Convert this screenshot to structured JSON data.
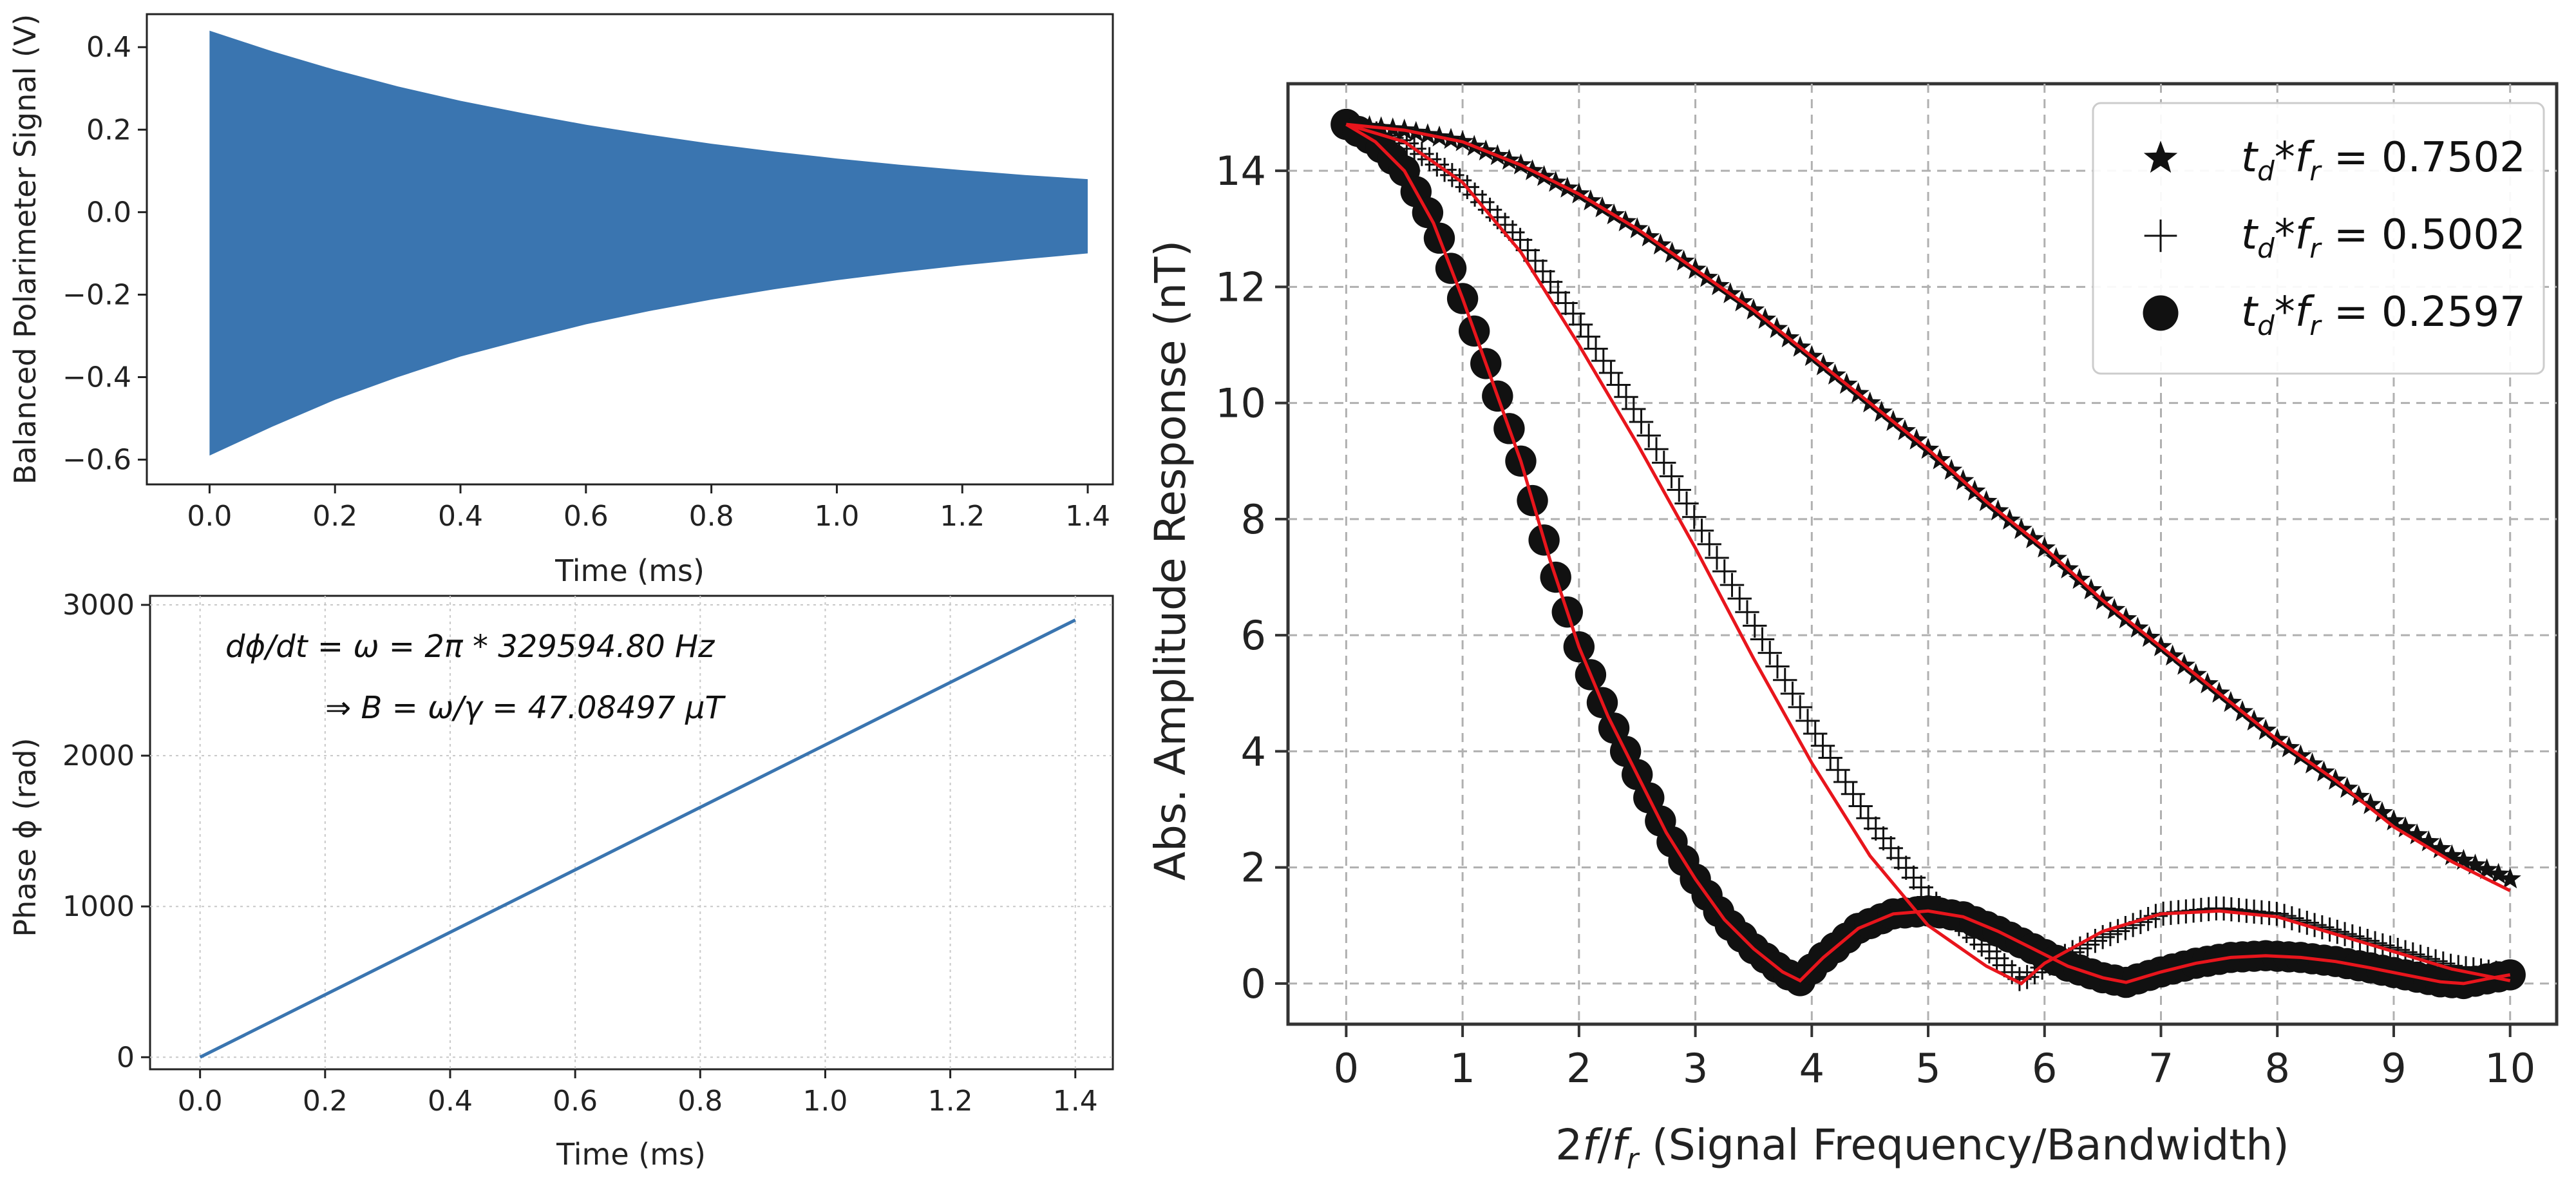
{
  "colors": {
    "signal": "#3a75b0",
    "phase": "#3a75b0",
    "fit": "#e8151c",
    "marker": "#111111"
  },
  "chart_data": [
    {
      "type": "area",
      "name_hint": "decaying-signal",
      "xlabel": "Time (ms)",
      "ylabel": "Balanced Polarimeter Signal (V)",
      "xlim": [
        -0.1,
        1.44
      ],
      "ylim": [
        -0.66,
        0.48
      ],
      "xticks": [
        0.0,
        0.2,
        0.4,
        0.6,
        0.8,
        1.0,
        1.2,
        1.4
      ],
      "xtick_labels": [
        "0.0",
        "0.2",
        "0.4",
        "0.6",
        "0.8",
        "1.0",
        "1.2",
        "1.4"
      ],
      "yticks": [
        -0.6,
        -0.4,
        -0.2,
        0.0,
        0.2,
        0.4
      ],
      "ytick_labels": [
        "−0.6",
        "−0.4",
        "−0.2",
        "0.0",
        "0.2",
        "0.4"
      ],
      "grid": false,
      "envelope": {
        "x": [
          0.0,
          0.1,
          0.2,
          0.3,
          0.4,
          0.5,
          0.6,
          0.7,
          0.8,
          0.9,
          1.0,
          1.1,
          1.2,
          1.3,
          1.4
        ],
        "upper": [
          0.44,
          0.39,
          0.345,
          0.305,
          0.27,
          0.24,
          0.212,
          0.188,
          0.166,
          0.147,
          0.13,
          0.115,
          0.102,
          0.09,
          0.08
        ],
        "lower": [
          -0.59,
          -0.52,
          -0.455,
          -0.4,
          -0.35,
          -0.31,
          -0.272,
          -0.24,
          -0.212,
          -0.187,
          -0.165,
          -0.146,
          -0.129,
          -0.114,
          -0.1
        ]
      }
    },
    {
      "type": "line",
      "name_hint": "phase",
      "xlabel": "Time (ms)",
      "ylabel": "Phase ϕ (rad)",
      "xlim": [
        -0.08,
        1.46
      ],
      "ylim": [
        -80,
        3060
      ],
      "xticks": [
        0.0,
        0.2,
        0.4,
        0.6,
        0.8,
        1.0,
        1.2,
        1.4
      ],
      "xtick_labels": [
        "0.0",
        "0.2",
        "0.4",
        "0.6",
        "0.8",
        "1.0",
        "1.2",
        "1.4"
      ],
      "yticks": [
        0,
        1000,
        2000,
        3000
      ],
      "ytick_labels": [
        "0",
        "1000",
        "2000",
        "3000"
      ],
      "grid": true,
      "x": [
        0.0,
        1.4
      ],
      "y": [
        0,
        2900
      ],
      "annotations": [
        "dϕ/dt = ω = 2π * 329594.80 Hz",
        "⇒ B = ω/γ = 47.08497 μT"
      ]
    },
    {
      "type": "scatter",
      "name_hint": "amplitude-response",
      "xlabel": "2f/f_r (Signal Frequency/Bandwidth)",
      "xlabel_main": "2",
      "xlabel_f": "f",
      "xlabel_slash": "/",
      "xlabel_fr": "f",
      "xlabel_fr_sub": "r",
      "xlabel_rest": " (Signal Frequency/Bandwidth)",
      "ylabel": "Abs. Amplitude Response (nT)",
      "xlim": [
        -0.5,
        10.4
      ],
      "ylim": [
        -0.7,
        15.5
      ],
      "xticks": [
        0,
        1,
        2,
        3,
        4,
        5,
        6,
        7,
        8,
        9,
        10
      ],
      "xtick_labels": [
        "0",
        "1",
        "2",
        "3",
        "4",
        "5",
        "6",
        "7",
        "8",
        "9",
        "10"
      ],
      "yticks": [
        0,
        2,
        4,
        6,
        8,
        10,
        12,
        14
      ],
      "ytick_labels": [
        "0",
        "2",
        "4",
        "6",
        "8",
        "10",
        "12",
        "14"
      ],
      "grid": true,
      "legend_position": "top-right",
      "series": [
        {
          "name": "t_d*f_r = 0.7502",
          "label_t": "t",
          "label_d": "d",
          "label_mid": "*",
          "label_f": "f",
          "label_r": "r",
          "label_val": " = 0.7502",
          "marker": "star",
          "x": [
            0,
            0.5,
            1,
            1.5,
            2,
            2.5,
            3,
            3.5,
            4,
            4.5,
            5,
            5.5,
            6,
            6.5,
            7,
            7.5,
            8,
            8.5,
            9,
            9.5,
            10
          ],
          "y": [
            14.8,
            14.7,
            14.5,
            14.1,
            13.6,
            13.0,
            12.3,
            11.6,
            10.8,
            10.0,
            9.2,
            8.3,
            7.5,
            6.6,
            5.8,
            5.0,
            4.2,
            3.5,
            2.8,
            2.2,
            1.8
          ]
        },
        {
          "name": "t_d*f_r = 0.5002",
          "label_t": "t",
          "label_d": "d",
          "label_mid": "*",
          "label_f": "f",
          "label_r": "r",
          "label_val": " = 0.5002",
          "marker": "plus",
          "x": [
            0,
            0.5,
            1,
            1.5,
            2,
            2.5,
            3,
            3.5,
            4,
            4.5,
            5,
            5.5,
            5.8,
            6,
            6.5,
            7,
            7.5,
            8,
            8.5,
            9,
            9.5,
            10
          ],
          "y": [
            14.8,
            14.5,
            13.8,
            12.8,
            11.4,
            9.8,
            8.0,
            6.2,
            4.4,
            2.8,
            1.5,
            0.6,
            0.05,
            0.3,
            0.8,
            1.2,
            1.3,
            1.2,
            0.9,
            0.6,
            0.3,
            0.15
          ]
        },
        {
          "name": "t_d*f_r = 0.2597",
          "label_t": "t",
          "label_d": "d",
          "label_mid": "*",
          "label_f": "f",
          "label_r": "r",
          "label_val": " = 0.2597",
          "marker": "circle",
          "x": [
            0,
            0.25,
            0.5,
            0.75,
            1,
            1.25,
            1.5,
            1.75,
            2,
            2.25,
            2.5,
            2.75,
            3,
            3.25,
            3.5,
            3.75,
            3.9,
            4.1,
            4.4,
            4.7,
            5,
            5.3,
            5.6,
            5.9,
            6.2,
            6.5,
            6.7,
            7,
            7.3,
            7.6,
            7.9,
            8.2,
            8.5,
            8.8,
            9.1,
            9.4,
            9.6,
            9.8,
            10
          ],
          "y": [
            14.8,
            14.5,
            14.0,
            13.1,
            11.8,
            10.4,
            9.0,
            7.3,
            5.8,
            4.6,
            3.6,
            2.6,
            1.8,
            1.1,
            0.6,
            0.2,
            0.05,
            0.45,
            0.95,
            1.2,
            1.25,
            1.15,
            0.9,
            0.6,
            0.3,
            0.1,
            0.02,
            0.2,
            0.35,
            0.45,
            0.48,
            0.45,
            0.38,
            0.27,
            0.15,
            0.03,
            0.0,
            0.08,
            0.15
          ]
        }
      ],
      "fits": [
        {
          "x": [
            0,
            0.5,
            1,
            1.5,
            2,
            2.5,
            3,
            3.5,
            4,
            4.5,
            5,
            5.5,
            6,
            6.5,
            7,
            7.5,
            8,
            8.5,
            9,
            9.5,
            10
          ],
          "y": [
            14.8,
            14.7,
            14.5,
            14.1,
            13.6,
            13.0,
            12.3,
            11.6,
            10.8,
            10.0,
            9.2,
            8.3,
            7.5,
            6.6,
            5.8,
            5.0,
            4.2,
            3.5,
            2.7,
            2.1,
            1.6
          ]
        },
        {
          "x": [
            0,
            0.5,
            1,
            1.5,
            2,
            2.5,
            3,
            3.5,
            4,
            4.5,
            5,
            5.5,
            5.8,
            6,
            6.5,
            7,
            7.5,
            8,
            8.5,
            9,
            9.5,
            10
          ],
          "y": [
            14.8,
            14.5,
            13.8,
            12.6,
            11.0,
            9.3,
            7.5,
            5.6,
            3.8,
            2.2,
            1.0,
            0.3,
            0.0,
            0.35,
            0.9,
            1.2,
            1.25,
            1.15,
            0.85,
            0.55,
            0.25,
            0.05
          ]
        },
        {
          "x": [
            0,
            0.25,
            0.5,
            0.75,
            1,
            1.25,
            1.5,
            1.75,
            2,
            2.25,
            2.5,
            2.75,
            3,
            3.25,
            3.5,
            3.75,
            3.9,
            4.1,
            4.4,
            4.7,
            5,
            5.3,
            5.6,
            5.9,
            6.2,
            6.5,
            6.7,
            7,
            7.3,
            7.6,
            7.9,
            8.2,
            8.5,
            8.8,
            9.1,
            9.4,
            9.6,
            9.8,
            10
          ],
          "y": [
            14.8,
            14.5,
            14.0,
            13.1,
            11.8,
            10.4,
            9.0,
            7.3,
            5.8,
            4.6,
            3.6,
            2.6,
            1.8,
            1.1,
            0.6,
            0.2,
            0.05,
            0.45,
            0.95,
            1.2,
            1.25,
            1.15,
            0.9,
            0.6,
            0.3,
            0.1,
            0.02,
            0.2,
            0.35,
            0.45,
            0.48,
            0.45,
            0.38,
            0.27,
            0.15,
            0.03,
            0.0,
            0.08,
            0.15
          ]
        }
      ]
    }
  ]
}
